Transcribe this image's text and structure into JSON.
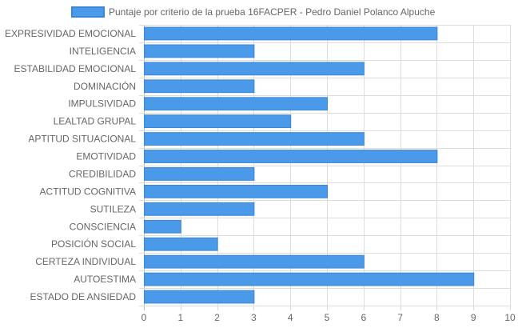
{
  "chart_data": {
    "type": "bar",
    "orientation": "horizontal",
    "categories": [
      "EXPRESIVIDAD EMOCIONAL",
      "INTELIGENCIA",
      "ESTABILIDAD EMOCIONAL",
      "DOMINACIÓN",
      "IMPULSIVIDAD",
      "LEALTAD GRUPAL",
      "APTITUD SITUACIONAL",
      "EMOTIVIDAD",
      "CREDIBILIDAD",
      "ACTITUD COGNITIVA",
      "SUTILEZA",
      "CONSCIENCIA",
      "POSICIÓN SOCIAL",
      "CERTEZA INDIVIDUAL",
      "AUTOESTIMA",
      "ESTADO DE ANSIEDAD"
    ],
    "series": [
      {
        "name": "Puntaje por criterio de la prueba 16FACPER - Pedro Daniel Polanco Alpuche",
        "values": [
          8,
          3,
          6,
          3,
          5,
          4,
          6,
          8,
          3,
          5,
          3,
          1,
          2,
          6,
          9,
          3
        ]
      }
    ],
    "xlim": [
      0,
      10
    ],
    "x_ticks": [
      "0",
      "1",
      "2",
      "3",
      "4",
      "5",
      "6",
      "7",
      "8",
      "9",
      "10"
    ],
    "grid": true,
    "legend_position": "top",
    "colors": {
      "bar_fill": "#4a9ae9",
      "bar_stroke": "#3a86d8",
      "grid": "#dddddd",
      "text": "#666666"
    }
  }
}
